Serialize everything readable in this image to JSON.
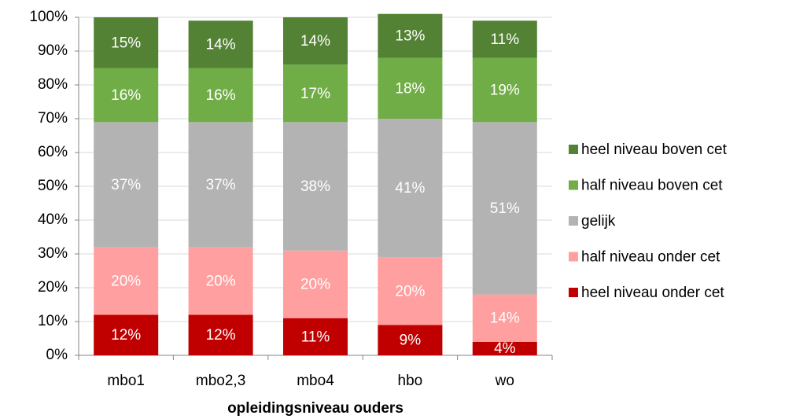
{
  "chart_data": {
    "type": "stacked_bar",
    "x_label": "opleidingsniveau ouders",
    "categories": [
      "mbo1",
      "mbo2,3",
      "mbo4",
      "hbo",
      "wo"
    ],
    "series": [
      {
        "name": "heel niveau onder cet",
        "color": "#c00000",
        "values": [
          12,
          12,
          11,
          9,
          4
        ],
        "value_labels": [
          "12%",
          "12%",
          "11%",
          "9%",
          "4%"
        ]
      },
      {
        "name": "half niveau onder cet",
        "color": "#ff9f9f",
        "values": [
          20,
          20,
          20,
          20,
          14
        ],
        "value_labels": [
          "20%",
          "20%",
          "20%",
          "20%",
          "14%"
        ]
      },
      {
        "name": "gelijk",
        "color": "#b3b3b3",
        "values": [
          37,
          37,
          38,
          41,
          51
        ],
        "value_labels": [
          "37%",
          "37%",
          "38%",
          "41%",
          "51%"
        ]
      },
      {
        "name": "half niveau boven cet",
        "color": "#70ad47",
        "values": [
          16,
          16,
          17,
          18,
          19
        ],
        "value_labels": [
          "16%",
          "16%",
          "17%",
          "18%",
          "19%"
        ]
      },
      {
        "name": "heel niveau boven cet",
        "color": "#548235",
        "values": [
          15,
          14,
          14,
          13,
          11
        ],
        "value_labels": [
          "15%",
          "14%",
          "14%",
          "13%",
          "11%"
        ]
      }
    ],
    "ylim": [
      0,
      100
    ],
    "yticks": [
      {
        "value": 0,
        "label": "0%"
      },
      {
        "value": 10,
        "label": "10%"
      },
      {
        "value": 20,
        "label": "20%"
      },
      {
        "value": 30,
        "label": "30%"
      },
      {
        "value": 40,
        "label": "40%"
      },
      {
        "value": 50,
        "label": "50%"
      },
      {
        "value": 60,
        "label": "60%"
      },
      {
        "value": 70,
        "label": "70%"
      },
      {
        "value": 80,
        "label": "80%"
      },
      {
        "value": 90,
        "label": "90%"
      },
      {
        "value": 100,
        "label": "100%"
      }
    ],
    "grid": true,
    "legend": "right"
  }
}
